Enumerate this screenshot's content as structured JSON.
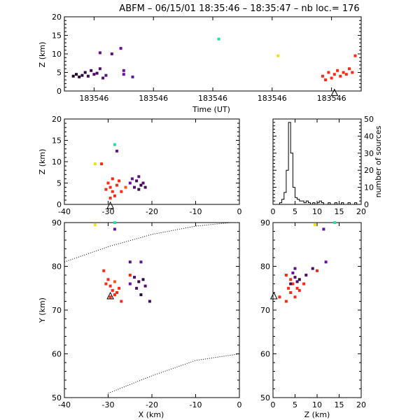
{
  "chart_data": [
    {
      "type": "scatter",
      "panel": "z-vs-time",
      "title_prefix": "ABFM",
      "date": "06/15/01",
      "time_start": "18:35:46",
      "time_end": "18:35:47",
      "nb_loc_label": "nb loc.=",
      "nb_loc": 176,
      "xlabel": "Time (UT)",
      "ylabel": "Z (km)",
      "ylim": [
        0,
        20
      ],
      "xlim": [
        0,
        100
      ],
      "y_ticks": [
        "0",
        "5",
        "10",
        "15",
        "20"
      ],
      "x_ticks": [
        "183546",
        "183546",
        "183546",
        "183546",
        "183546"
      ],
      "x_tick_values": [
        10,
        30,
        50,
        70,
        90
      ],
      "points": [
        {
          "x": 3,
          "y": 4,
          "color": "#1e0a28"
        },
        {
          "x": 4,
          "y": 4.5,
          "color": "#1e0a28"
        },
        {
          "x": 5,
          "y": 3.8,
          "color": "#1e0a28"
        },
        {
          "x": 6,
          "y": 4.2,
          "color": "#2d0a3c"
        },
        {
          "x": 7,
          "y": 5,
          "color": "#2d0a3c"
        },
        {
          "x": 8,
          "y": 4,
          "color": "#3c0a50"
        },
        {
          "x": 9,
          "y": 5.5,
          "color": "#3c0a50"
        },
        {
          "x": 10,
          "y": 4.5,
          "color": "#4b0a64"
        },
        {
          "x": 11,
          "y": 4.8,
          "color": "#4b0a64"
        },
        {
          "x": 12,
          "y": 6,
          "color": "#5a0a78"
        },
        {
          "x": 13,
          "y": 3.5,
          "color": "#5a0a78"
        },
        {
          "x": 14,
          "y": 4.2,
          "color": "#5a1482"
        },
        {
          "x": 16,
          "y": 10,
          "color": "#6a0a8c"
        },
        {
          "x": 12,
          "y": 10.3,
          "color": "#6a0a8c"
        },
        {
          "x": 19,
          "y": 11.5,
          "color": "#6a10a0"
        },
        {
          "x": 20,
          "y": 4.5,
          "color": "#6a10a0"
        },
        {
          "x": 20,
          "y": 5.5,
          "color": "#6a10a0"
        },
        {
          "x": 23,
          "y": 3.8,
          "color": "#5a1ea0"
        },
        {
          "x": 52,
          "y": 14,
          "color": "#1ee6a0"
        },
        {
          "x": 72,
          "y": 9.5,
          "color": "#e6e614"
        },
        {
          "x": 87,
          "y": 4,
          "color": "#ff2814"
        },
        {
          "x": 88,
          "y": 3,
          "color": "#ff2814"
        },
        {
          "x": 89,
          "y": 5,
          "color": "#ff2814"
        },
        {
          "x": 90,
          "y": 3.5,
          "color": "#ff2814"
        },
        {
          "x": 91,
          "y": 4.5,
          "color": "#ff2814"
        },
        {
          "x": 92,
          "y": 5.5,
          "color": "#ff2814"
        },
        {
          "x": 93,
          "y": 4,
          "color": "#ff2814"
        },
        {
          "x": 94,
          "y": 5,
          "color": "#ff2814"
        },
        {
          "x": 95,
          "y": 4.5,
          "color": "#ff2814"
        },
        {
          "x": 96,
          "y": 6,
          "color": "#ff2814"
        },
        {
          "x": 97,
          "y": 5,
          "color": "#ff2814"
        },
        {
          "x": 98,
          "y": 9.5,
          "color": "#ff2814"
        }
      ],
      "station_marker": {
        "x": 91,
        "y": -0.5
      }
    },
    {
      "type": "scatter",
      "panel": "z-vs-x",
      "xlabel": "",
      "ylabel": "Z (km)",
      "xlim": [
        -40,
        0
      ],
      "ylim": [
        0,
        20
      ],
      "x_ticks": [
        "-40",
        "-30",
        "-20",
        "-10",
        "0"
      ],
      "x_tick_values": [
        -40,
        -30,
        -20,
        -10,
        0
      ],
      "y_ticks": [
        "0",
        "5",
        "10",
        "15",
        "20"
      ],
      "points": [
        {
          "x": -33,
          "y": 9.5,
          "color": "#e6e614"
        },
        {
          "x": -28.5,
          "y": 14,
          "color": "#1ee6a0"
        },
        {
          "x": -28,
          "y": 12.5,
          "color": "#6a10a0"
        },
        {
          "x": -31.5,
          "y": 9.5,
          "color": "#ff2814"
        },
        {
          "x": -30,
          "y": 5,
          "color": "#ff2814"
        },
        {
          "x": -29.5,
          "y": 4,
          "color": "#ff2814"
        },
        {
          "x": -29,
          "y": 3,
          "color": "#ff2814"
        },
        {
          "x": -28.5,
          "y": 2,
          "color": "#ff2814"
        },
        {
          "x": -29.5,
          "y": 1.5,
          "color": "#ff2814"
        },
        {
          "x": -28,
          "y": 4.5,
          "color": "#ff2814"
        },
        {
          "x": -27.5,
          "y": 5.5,
          "color": "#ff2814"
        },
        {
          "x": -30.5,
          "y": 3.5,
          "color": "#ff2814"
        },
        {
          "x": -27,
          "y": 3,
          "color": "#ff2814"
        },
        {
          "x": -29,
          "y": 6,
          "color": "#ff2814"
        },
        {
          "x": -26,
          "y": 4,
          "color": "#ff5014"
        },
        {
          "x": -25,
          "y": 5,
          "color": "#6a10a0"
        },
        {
          "x": -24,
          "y": 4,
          "color": "#5a0a78"
        },
        {
          "x": -23.5,
          "y": 5.5,
          "color": "#4b0a64"
        },
        {
          "x": -23,
          "y": 3.5,
          "color": "#3c0a50"
        },
        {
          "x": -22.5,
          "y": 4.5,
          "color": "#2d0a3c"
        },
        {
          "x": -22,
          "y": 5,
          "color": "#5a0a78"
        },
        {
          "x": -21.5,
          "y": 4,
          "color": "#4b0a64"
        },
        {
          "x": -24.5,
          "y": 6,
          "color": "#6a10a0"
        },
        {
          "x": -23,
          "y": 6.5,
          "color": "#5a1482"
        }
      ],
      "station_marker": {
        "x": -29.5,
        "y": -0.3
      }
    },
    {
      "type": "bar",
      "panel": "histogram",
      "ylabel": "number of sources",
      "xlim": [
        0,
        20
      ],
      "ylim": [
        0,
        50
      ],
      "x_ticks": [
        "0",
        "5",
        "10",
        "15",
        "20"
      ],
      "x_tick_values": [
        0,
        5,
        10,
        15,
        20
      ],
      "y_ticks": [
        "0",
        "10",
        "20",
        "30",
        "40",
        "50"
      ],
      "bin_width": 0.5,
      "bin_start": 1.5,
      "values": [
        1,
        3,
        7,
        20,
        48,
        30,
        10,
        4,
        3,
        2,
        2,
        1,
        2,
        1,
        0,
        1,
        0,
        1,
        2,
        1,
        0,
        0,
        1,
        0,
        0,
        1,
        0,
        0,
        1,
        0,
        0,
        1,
        0,
        0,
        1
      ]
    },
    {
      "type": "scatter",
      "panel": "y-vs-x",
      "xlabel": "X (km)",
      "ylabel": "Y (km)",
      "xlim": [
        -40,
        0
      ],
      "ylim": [
        50,
        90
      ],
      "x_ticks": [
        "-40",
        "-30",
        "-20",
        "-10",
        "0"
      ],
      "x_tick_values": [
        -40,
        -30,
        -20,
        -10,
        0
      ],
      "y_ticks": [
        "50",
        "60",
        "70",
        "80",
        "90"
      ],
      "points": [
        {
          "x": -33,
          "y": 89.5,
          "color": "#e6e614"
        },
        {
          "x": -28.5,
          "y": 90,
          "color": "#1ee6a0"
        },
        {
          "x": -28.5,
          "y": 88.5,
          "color": "#6a10a0"
        },
        {
          "x": -31,
          "y": 79,
          "color": "#ff2814"
        },
        {
          "x": -30,
          "y": 77,
          "color": "#ff2814"
        },
        {
          "x": -29.5,
          "y": 75.5,
          "color": "#ff2814"
        },
        {
          "x": -29,
          "y": 74.5,
          "color": "#ff2814"
        },
        {
          "x": -28.5,
          "y": 73.5,
          "color": "#ff2814"
        },
        {
          "x": -28,
          "y": 74,
          "color": "#ff2814"
        },
        {
          "x": -29.5,
          "y": 73,
          "color": "#ff2814"
        },
        {
          "x": -27.5,
          "y": 75,
          "color": "#ff2814"
        },
        {
          "x": -30.5,
          "y": 76,
          "color": "#ff2814"
        },
        {
          "x": -27,
          "y": 72,
          "color": "#ff2814"
        },
        {
          "x": -25,
          "y": 78,
          "color": "#ff2814"
        },
        {
          "x": -28.5,
          "y": 76.5,
          "color": "#ff5014"
        },
        {
          "x": -25,
          "y": 76,
          "color": "#6a10a0"
        },
        {
          "x": -24,
          "y": 77.5,
          "color": "#5a0a78"
        },
        {
          "x": -23.5,
          "y": 75,
          "color": "#4b0a64"
        },
        {
          "x": -23,
          "y": 76.5,
          "color": "#3c0a50"
        },
        {
          "x": -22,
          "y": 77,
          "color": "#2d0a3c"
        },
        {
          "x": -21.5,
          "y": 75.5,
          "color": "#5a0a78"
        },
        {
          "x": -20.5,
          "y": 72,
          "color": "#4b0a64"
        },
        {
          "x": -22.5,
          "y": 81,
          "color": "#6a10a0"
        },
        {
          "x": -25,
          "y": 81,
          "color": "#5a1482"
        },
        {
          "x": -22.5,
          "y": 73.5,
          "color": "#2d0a3c"
        }
      ],
      "station_marker": {
        "x": -29.5,
        "y": 73.2
      },
      "range_curves": [
        {
          "points": [
            [
              -40,
              81
            ],
            [
              -30,
              84.5
            ],
            [
              -20,
              87.3
            ],
            [
              -10,
              89.2
            ],
            [
              -2,
              90
            ]
          ]
        },
        {
          "points": [
            [
              -30,
              51
            ],
            [
              -20,
              55
            ],
            [
              -10,
              58.5
            ],
            [
              0,
              60
            ]
          ]
        }
      ]
    },
    {
      "type": "scatter",
      "panel": "y-vs-z",
      "xlabel": "Z (km)",
      "ylabel": "",
      "xlim": [
        0,
        20
      ],
      "ylim": [
        50,
        90
      ],
      "x_ticks": [
        "0",
        "5",
        "10",
        "15",
        "20"
      ],
      "x_tick_values": [
        0,
        5,
        10,
        15,
        20
      ],
      "y_ticks": [
        "50",
        "60",
        "70",
        "80",
        "90"
      ],
      "points": [
        {
          "x": 9.5,
          "y": 89.5,
          "color": "#e6e614"
        },
        {
          "x": 14,
          "y": 90,
          "color": "#1ee6a0"
        },
        {
          "x": 11.5,
          "y": 88.5,
          "color": "#6a10a0"
        },
        {
          "x": 10,
          "y": 79,
          "color": "#ff2814"
        },
        {
          "x": 1.5,
          "y": 73,
          "color": "#ff2814"
        },
        {
          "x": 3,
          "y": 72,
          "color": "#ff2814"
        },
        {
          "x": 3.5,
          "y": 75,
          "color": "#ff2814"
        },
        {
          "x": 4,
          "y": 74,
          "color": "#ff2814"
        },
        {
          "x": 4.5,
          "y": 76,
          "color": "#ff2814"
        },
        {
          "x": 5,
          "y": 73,
          "color": "#ff2814"
        },
        {
          "x": 5.5,
          "y": 75,
          "color": "#ff2814"
        },
        {
          "x": 4,
          "y": 77,
          "color": "#ff2814"
        },
        {
          "x": 6,
          "y": 74.5,
          "color": "#ff2814"
        },
        {
          "x": 7,
          "y": 76,
          "color": "#ff2814"
        },
        {
          "x": 3,
          "y": 78,
          "color": "#ff2814"
        },
        {
          "x": 4.5,
          "y": 78.5,
          "color": "#6a10a0"
        },
        {
          "x": 5,
          "y": 77.5,
          "color": "#5a0a78"
        },
        {
          "x": 5.5,
          "y": 76.5,
          "color": "#4b0a64"
        },
        {
          "x": 4,
          "y": 76,
          "color": "#3c0a50"
        },
        {
          "x": 6,
          "y": 77,
          "color": "#2d0a3c"
        },
        {
          "x": 7.5,
          "y": 78,
          "color": "#5a0a78"
        },
        {
          "x": 9,
          "y": 79.5,
          "color": "#4b0a64"
        },
        {
          "x": 12,
          "y": 81,
          "color": "#6a10a0"
        },
        {
          "x": 5,
          "y": 79.5,
          "color": "#5a1482"
        }
      ],
      "station_marker": {
        "x": 0.2,
        "y": 73.2
      }
    }
  ]
}
